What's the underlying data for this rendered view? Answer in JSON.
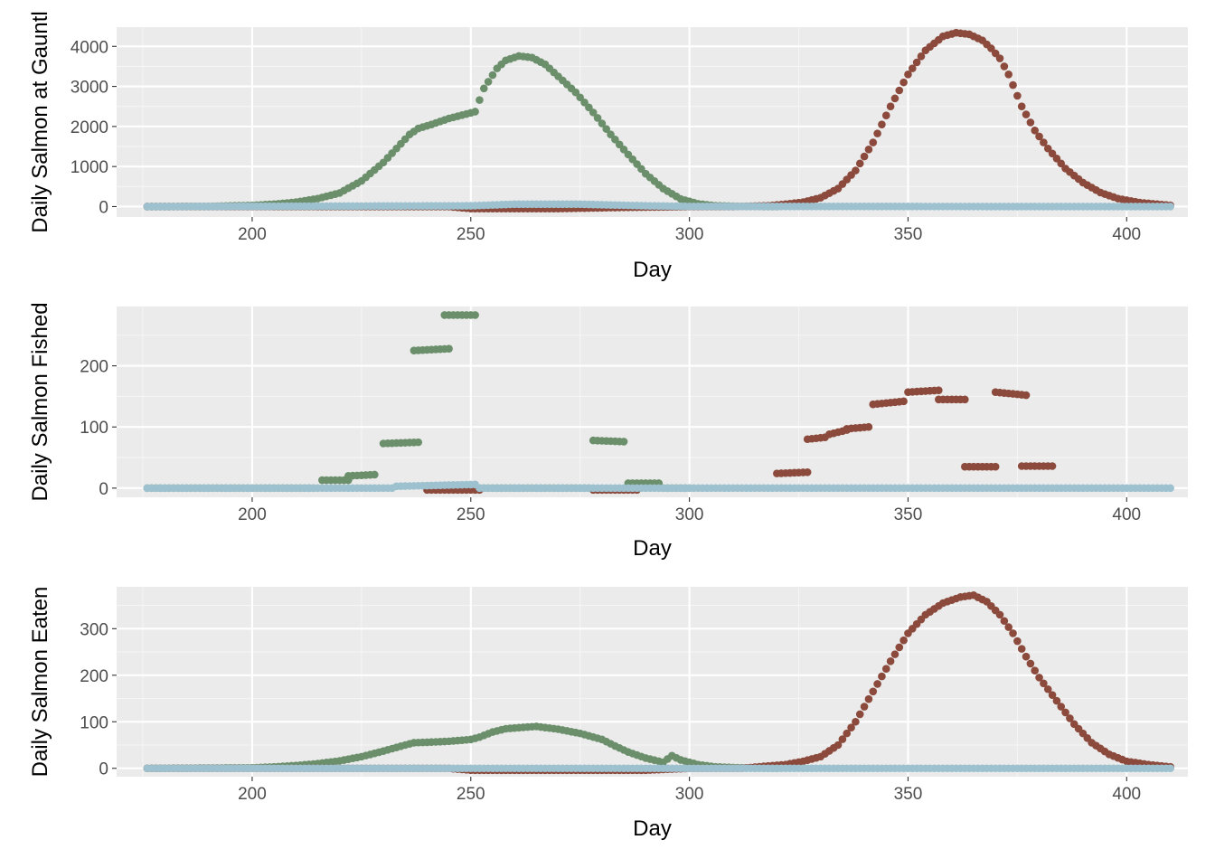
{
  "colors": {
    "panel_background": "#ebebeb",
    "grid_major": "#ffffff",
    "grid_minor": "#f5f5f5",
    "tick_text": "#4d4d4d",
    "title_text": "#000000"
  },
  "chart_data": [
    {
      "type": "scatter",
      "xlabel": "Day",
      "ylabel": "Daily Salmon at Gauntl",
      "xlim": [
        169,
        414
      ],
      "ylim": [
        -260,
        4480
      ],
      "x_ticks": [
        200,
        250,
        300,
        350,
        400
      ],
      "y_ticks": [
        0,
        1000,
        2000,
        3000,
        4000
      ],
      "grid": true,
      "legend": "none",
      "series": [
        {
          "color": "#6b8e6b",
          "segments": [
            [
              [
                176,
                0
              ],
              [
                190,
                5
              ],
              [
                200,
                30
              ],
              [
                205,
                60
              ],
              [
                210,
                110
              ],
              [
                215,
                200
              ],
              [
                220,
                340
              ],
              [
                225,
                640
              ],
              [
                230,
                1100
              ],
              [
                233,
                1450
              ],
              [
                236,
                1800
              ],
              [
                238,
                1950
              ],
              [
                241,
                2050
              ],
              [
                245,
                2200
              ],
              [
                250,
                2340
              ],
              [
                251,
                2370
              ],
              [
                253,
                2950
              ],
              [
                256,
                3450
              ],
              [
                258,
                3650
              ],
              [
                261,
                3760
              ],
              [
                264,
                3720
              ],
              [
                267,
                3550
              ],
              [
                270,
                3250
              ],
              [
                274,
                2850
              ],
              [
                278,
                2350
              ],
              [
                282,
                1800
              ],
              [
                286,
                1300
              ],
              [
                290,
                820
              ],
              [
                294,
                450
              ],
              [
                298,
                190
              ],
              [
                302,
                70
              ],
              [
                306,
                20
              ],
              [
                312,
                5
              ],
              [
                320,
                0
              ]
            ]
          ]
        },
        {
          "color": "#8b4a3c",
          "segments": [
            [
              [
                176,
                0
              ],
              [
                245,
                0
              ],
              [
                250,
                -50
              ],
              [
                270,
                -50
              ],
              [
                285,
                -20
              ],
              [
                300,
                0
              ],
              [
                310,
                0
              ],
              [
                318,
                20
              ],
              [
                322,
                60
              ],
              [
                326,
                110
              ],
              [
                330,
                220
              ],
              [
                334,
                450
              ],
              [
                338,
                900
              ],
              [
                342,
                1600
              ],
              [
                346,
                2500
              ],
              [
                350,
                3300
              ],
              [
                354,
                3900
              ],
              [
                358,
                4250
              ],
              [
                361,
                4340
              ],
              [
                364,
                4300
              ],
              [
                367,
                4150
              ],
              [
                369,
                3950
              ],
              [
                371,
                3700
              ],
              [
                373,
                3300
              ],
              [
                376,
                2500
              ],
              [
                379,
                1900
              ],
              [
                382,
                1450
              ],
              [
                386,
                950
              ],
              [
                390,
                600
              ],
              [
                394,
                350
              ],
              [
                398,
                200
              ],
              [
                403,
                100
              ],
              [
                410,
                30
              ]
            ]
          ]
        },
        {
          "color": "#9ec1cf",
          "segments": [
            [
              [
                176,
                0
              ],
              [
                250,
                20
              ],
              [
                260,
                60
              ],
              [
                275,
                60
              ],
              [
                290,
                20
              ],
              [
                300,
                5
              ],
              [
                410,
                0
              ]
            ]
          ]
        }
      ]
    },
    {
      "type": "scatter",
      "xlabel": "Day",
      "ylabel": "Daily Salmon Fished",
      "xlim": [
        169,
        414
      ],
      "ylim": [
        -15,
        297
      ],
      "x_ticks": [
        200,
        250,
        300,
        350,
        400
      ],
      "y_ticks": [
        0,
        100,
        200
      ],
      "grid": true,
      "legend": "none",
      "series": [
        {
          "color": "#6b8e6b",
          "segments": [
            [
              [
                176,
                0
              ],
              [
                214,
                0
              ]
            ],
            [
              [
                216,
                13
              ],
              [
                222,
                13
              ]
            ],
            [
              [
                222,
                20
              ],
              [
                228,
                22
              ]
            ],
            [
              [
                230,
                73
              ],
              [
                238,
                75
              ]
            ],
            [
              [
                237,
                225
              ],
              [
                245,
                228
              ]
            ],
            [
              [
                244,
                283
              ],
              [
                251,
                283
              ]
            ],
            [
              [
                252,
                0
              ],
              [
                277,
                0
              ]
            ],
            [
              [
                278,
                78
              ],
              [
                285,
                76
              ]
            ],
            [
              [
                286,
                8
              ],
              [
                293,
                8
              ]
            ],
            [
              [
                294,
                0
              ],
              [
                300,
                0
              ]
            ]
          ]
        },
        {
          "color": "#8b4a3c",
          "segments": [
            [
              [
                240,
                -3
              ],
              [
                252,
                -3
              ]
            ],
            [
              [
                278,
                -3
              ],
              [
                288,
                -3
              ]
            ],
            [
              [
                320,
                24
              ],
              [
                327,
                26
              ]
            ],
            [
              [
                327,
                80
              ],
              [
                331,
                83
              ]
            ],
            [
              [
                332,
                88
              ],
              [
                336,
                95
              ]
            ],
            [
              [
                336,
                97
              ],
              [
                341,
                100
              ]
            ],
            [
              [
                342,
                137
              ],
              [
                349,
                142
              ]
            ],
            [
              [
                350,
                157
              ],
              [
                357,
                160
              ]
            ],
            [
              [
                357,
                145
              ],
              [
                363,
                145
              ]
            ],
            [
              [
                363,
                35
              ],
              [
                370,
                35
              ]
            ],
            [
              [
                370,
                157
              ],
              [
                377,
                152
              ]
            ],
            [
              [
                376,
                36
              ],
              [
                383,
                36
              ]
            ]
          ]
        },
        {
          "color": "#9ec1cf",
          "segments": [
            [
              [
                176,
                0
              ],
              [
                232,
                0
              ]
            ],
            [
              [
                233,
                3
              ],
              [
                251,
                6
              ]
            ],
            [
              [
                252,
                0
              ],
              [
                410,
                0
              ]
            ]
          ]
        }
      ]
    },
    {
      "type": "scatter",
      "xlabel": "Day",
      "ylabel": "Daily Salmon Eaten",
      "xlim": [
        169,
        414
      ],
      "ylim": [
        -18,
        390
      ],
      "x_ticks": [
        200,
        250,
        300,
        350,
        400
      ],
      "y_ticks": [
        0,
        100,
        200,
        300
      ],
      "grid": true,
      "legend": "none",
      "series": [
        {
          "color": "#6b8e6b",
          "segments": [
            [
              [
                176,
                0
              ],
              [
                200,
                1
              ],
              [
                205,
                3
              ],
              [
                210,
                6
              ],
              [
                215,
                10
              ],
              [
                220,
                16
              ],
              [
                225,
                25
              ],
              [
                230,
                37
              ],
              [
                235,
                50
              ],
              [
                237,
                55
              ],
              [
                240,
                56
              ],
              [
                245,
                58
              ],
              [
                250,
                62
              ],
              [
                252,
                67
              ],
              [
                255,
                78
              ],
              [
                258,
                85
              ],
              [
                262,
                88
              ],
              [
                265,
                90
              ],
              [
                270,
                84
              ],
              [
                275,
                75
              ],
              [
                280,
                62
              ],
              [
                283,
                48
              ],
              [
                286,
                35
              ],
              [
                290,
                22
              ],
              [
                294,
                13
              ],
              [
                296,
                27
              ],
              [
                298,
                18
              ],
              [
                302,
                8
              ],
              [
                306,
                3
              ],
              [
                312,
                1
              ],
              [
                320,
                0
              ]
            ]
          ]
        },
        {
          "color": "#8b4a3c",
          "segments": [
            [
              [
                176,
                0
              ],
              [
                245,
                0
              ],
              [
                250,
                -4
              ],
              [
                290,
                -4
              ],
              [
                300,
                0
              ],
              [
                312,
                0
              ],
              [
                318,
                5
              ],
              [
                322,
                8
              ],
              [
                326,
                15
              ],
              [
                330,
                25
              ],
              [
                334,
                50
              ],
              [
                338,
                100
              ],
              [
                342,
                165
              ],
              [
                346,
                230
              ],
              [
                350,
                290
              ],
              [
                354,
                330
              ],
              [
                358,
                355
              ],
              [
                362,
                368
              ],
              [
                365,
                372
              ],
              [
                368,
                358
              ],
              [
                371,
                330
              ],
              [
                374,
                290
              ],
              [
                377,
                240
              ],
              [
                380,
                195
              ],
              [
                384,
                145
              ],
              [
                388,
                95
              ],
              [
                392,
                55
              ],
              [
                396,
                30
              ],
              [
                400,
                15
              ],
              [
                405,
                8
              ],
              [
                410,
                3
              ]
            ]
          ]
        },
        {
          "color": "#9ec1cf",
          "segments": [
            [
              [
                176,
                0
              ],
              [
                410,
                0
              ]
            ]
          ]
        }
      ]
    }
  ]
}
